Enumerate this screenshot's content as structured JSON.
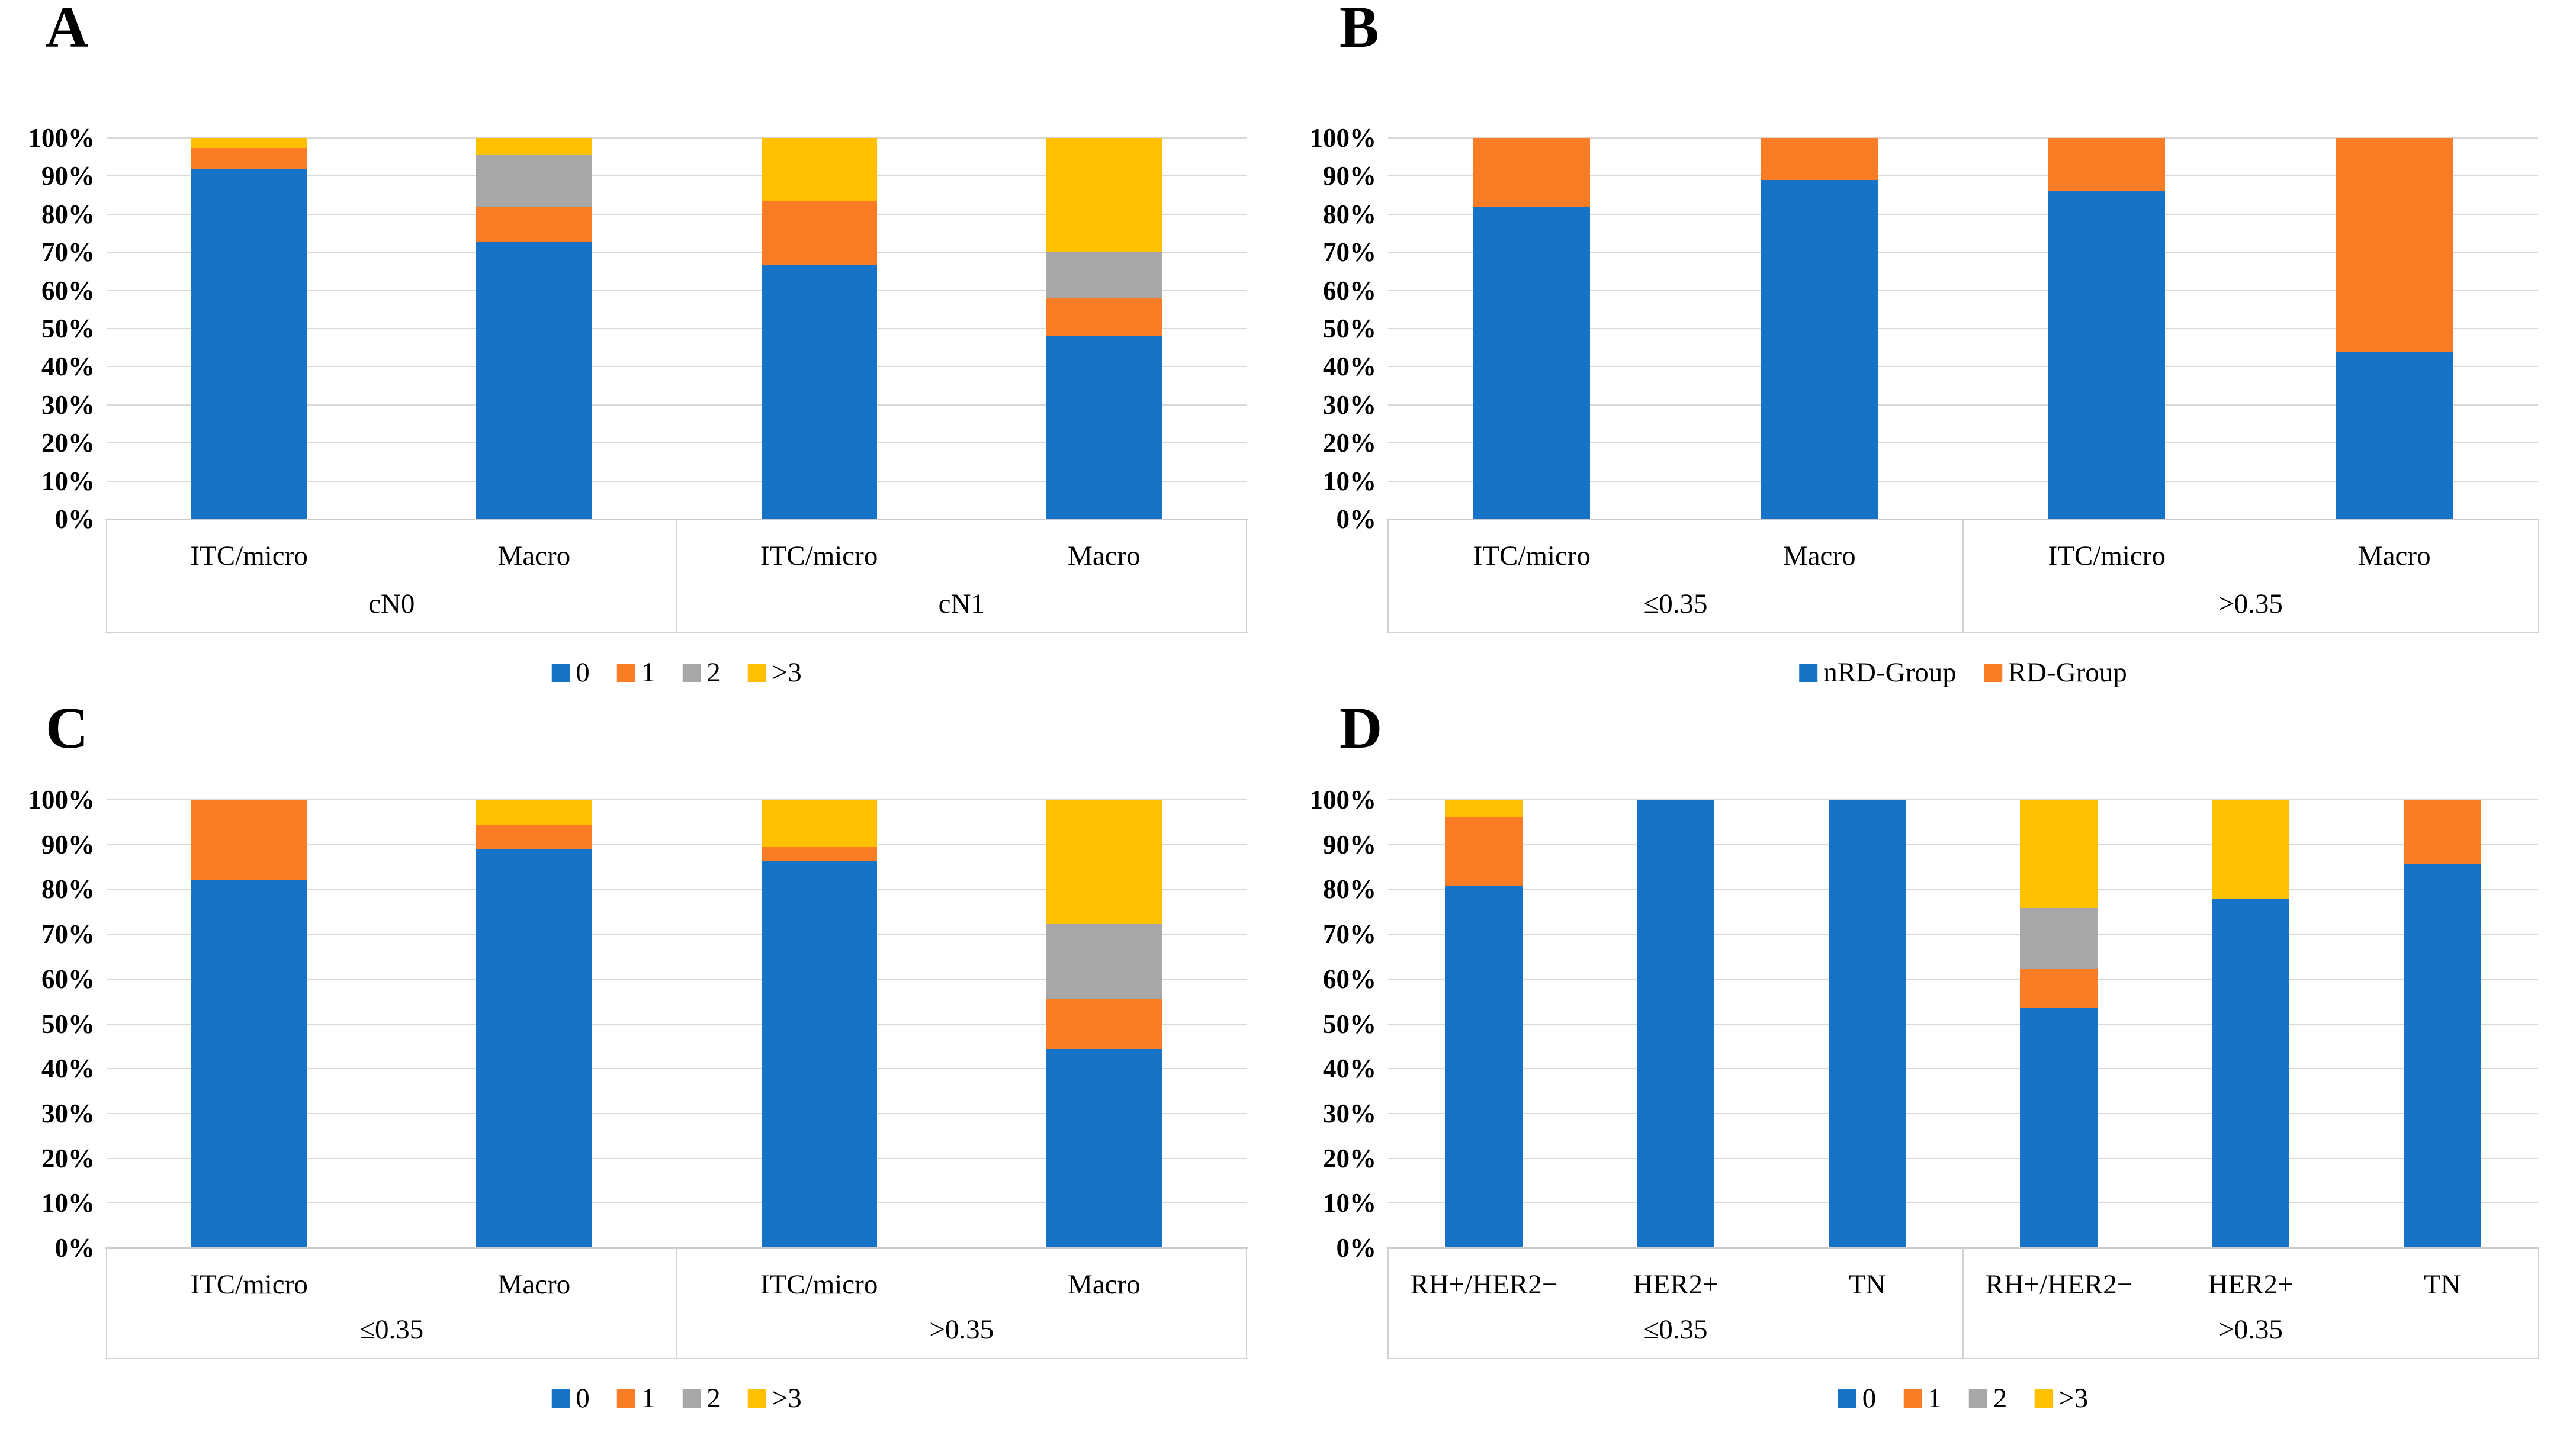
{
  "figure": {
    "background": "#ffffff",
    "panel_letters": [
      "A",
      "B",
      "C",
      "D"
    ]
  },
  "axis": {
    "y_ticks": [
      "0%",
      "10%",
      "20%",
      "30%",
      "40%",
      "50%",
      "60%",
      "70%",
      "80%",
      "90%",
      "100%"
    ],
    "ylim": [
      0,
      100
    ],
    "grid": true
  },
  "palette": {
    "blue": "#1673C8",
    "orange": "#FA7D26",
    "gray": "#A7A7A7",
    "yellow": "#FFC000",
    "gridline": "#D9D9D9",
    "table_border": "#D2D2D2"
  },
  "chart_data": [
    {
      "panel_letter": "A",
      "type": "bar",
      "subtype": "stacked-100-percent",
      "ylabel": "",
      "xlabel": "",
      "ylim": [
        0,
        100
      ],
      "grid": true,
      "legend_position": "bottom",
      "series": [
        {
          "name": "0",
          "color": "#1673C8"
        },
        {
          "name": "1",
          "color": "#FA7D26"
        },
        {
          "name": "2",
          "color": "#A7A7A7"
        },
        {
          "name": ">3",
          "color": "#FFC000"
        }
      ],
      "groups": [
        {
          "label": "cN0",
          "categories": [
            "ITC/micro",
            "Macro"
          ]
        },
        {
          "label": "cN1",
          "categories": [
            "ITC/micro",
            "Macro"
          ]
        }
      ],
      "bars": [
        {
          "group": "cN0",
          "category": "ITC/micro",
          "values": [
            91.9,
            5.4,
            0,
            2.7
          ]
        },
        {
          "group": "cN0",
          "category": "Macro",
          "values": [
            72.7,
            9.1,
            13.7,
            4.5
          ]
        },
        {
          "group": "cN1",
          "category": "ITC/micro",
          "values": [
            66.7,
            16.7,
            0,
            16.6
          ]
        },
        {
          "group": "cN1",
          "category": "Macro",
          "values": [
            48.0,
            10.0,
            12.0,
            30.0
          ]
        }
      ]
    },
    {
      "panel_letter": "B",
      "type": "bar",
      "subtype": "stacked-100-percent",
      "ylabel": "",
      "xlabel": "",
      "ylim": [
        0,
        100
      ],
      "grid": true,
      "legend_position": "bottom",
      "series": [
        {
          "name": "nRD-Group",
          "color": "#1673C8"
        },
        {
          "name": "RD-Group",
          "color": "#FA7D26"
        }
      ],
      "groups": [
        {
          "label": "≤0.35",
          "categories": [
            "ITC/micro",
            "Macro"
          ]
        },
        {
          "label": ">0.35",
          "categories": [
            "ITC/micro",
            "Macro"
          ]
        }
      ],
      "bars": [
        {
          "group": "≤0.35",
          "category": "ITC/micro",
          "values": [
            82.0,
            18.0
          ]
        },
        {
          "group": "≤0.35",
          "category": "Macro",
          "values": [
            88.9,
            11.1
          ]
        },
        {
          "group": ">0.35",
          "category": "ITC/micro",
          "values": [
            86.0,
            14.0
          ]
        },
        {
          "group": ">0.35",
          "category": "Macro",
          "values": [
            44.0,
            56.0
          ]
        }
      ]
    },
    {
      "panel_letter": "C",
      "type": "bar",
      "subtype": "stacked-100-percent",
      "ylabel": "",
      "xlabel": "",
      "ylim": [
        0,
        100
      ],
      "grid": true,
      "legend_position": "bottom",
      "series": [
        {
          "name": "0",
          "color": "#1673C8"
        },
        {
          "name": "1",
          "color": "#FA7D26"
        },
        {
          "name": "2",
          "color": "#A7A7A7"
        },
        {
          "name": ">3",
          "color": "#FFC000"
        }
      ],
      "groups": [
        {
          "label": "≤0.35",
          "categories": [
            "ITC/micro",
            "Macro"
          ]
        },
        {
          "label": ">0.35",
          "categories": [
            "ITC/micro",
            "Macro"
          ]
        }
      ],
      "bars": [
        {
          "group": "≤0.35",
          "category": "ITC/micro",
          "values": [
            82.0,
            18.0,
            0,
            0
          ]
        },
        {
          "group": "≤0.35",
          "category": "Macro",
          "values": [
            88.9,
            5.6,
            0,
            5.5
          ]
        },
        {
          "group": ">0.35",
          "category": "ITC/micro",
          "values": [
            86.2,
            3.4,
            0,
            10.4
          ]
        },
        {
          "group": ">0.35",
          "category": "Macro",
          "values": [
            44.4,
            11.1,
            16.7,
            27.8
          ]
        }
      ]
    },
    {
      "panel_letter": "D",
      "type": "bar",
      "subtype": "stacked-100-percent",
      "ylabel": "",
      "xlabel": "",
      "ylim": [
        0,
        100
      ],
      "grid": true,
      "legend_position": "bottom",
      "series": [
        {
          "name": "0",
          "color": "#1673C8"
        },
        {
          "name": "1",
          "color": "#FA7D26"
        },
        {
          "name": "2",
          "color": "#A7A7A7"
        },
        {
          "name": ">3",
          "color": "#FFC000"
        }
      ],
      "groups": [
        {
          "label": "≤0.35",
          "categories": [
            "RH+/HER2−",
            "HER2+",
            "TN"
          ]
        },
        {
          "label": ">0.35",
          "categories": [
            "RH+/HER2−",
            "HER2+",
            "TN"
          ]
        }
      ],
      "bars": [
        {
          "group": "≤0.35",
          "category": "RH+/HER2−",
          "values": [
            80.8,
            15.4,
            0,
            3.8
          ]
        },
        {
          "group": "≤0.35",
          "category": "HER2+",
          "values": [
            100,
            0,
            0,
            0
          ]
        },
        {
          "group": "≤0.35",
          "category": "TN",
          "values": [
            100,
            0,
            0,
            0
          ]
        },
        {
          "group": ">0.35",
          "category": "RH+/HER2−",
          "values": [
            53.5,
            8.7,
            13.6,
            24.2
          ]
        },
        {
          "group": ">0.35",
          "category": "HER2+",
          "values": [
            77.8,
            0,
            0,
            22.2
          ]
        },
        {
          "group": ">0.35",
          "category": "TN",
          "values": [
            85.7,
            14.3,
            0,
            0
          ]
        }
      ]
    }
  ]
}
